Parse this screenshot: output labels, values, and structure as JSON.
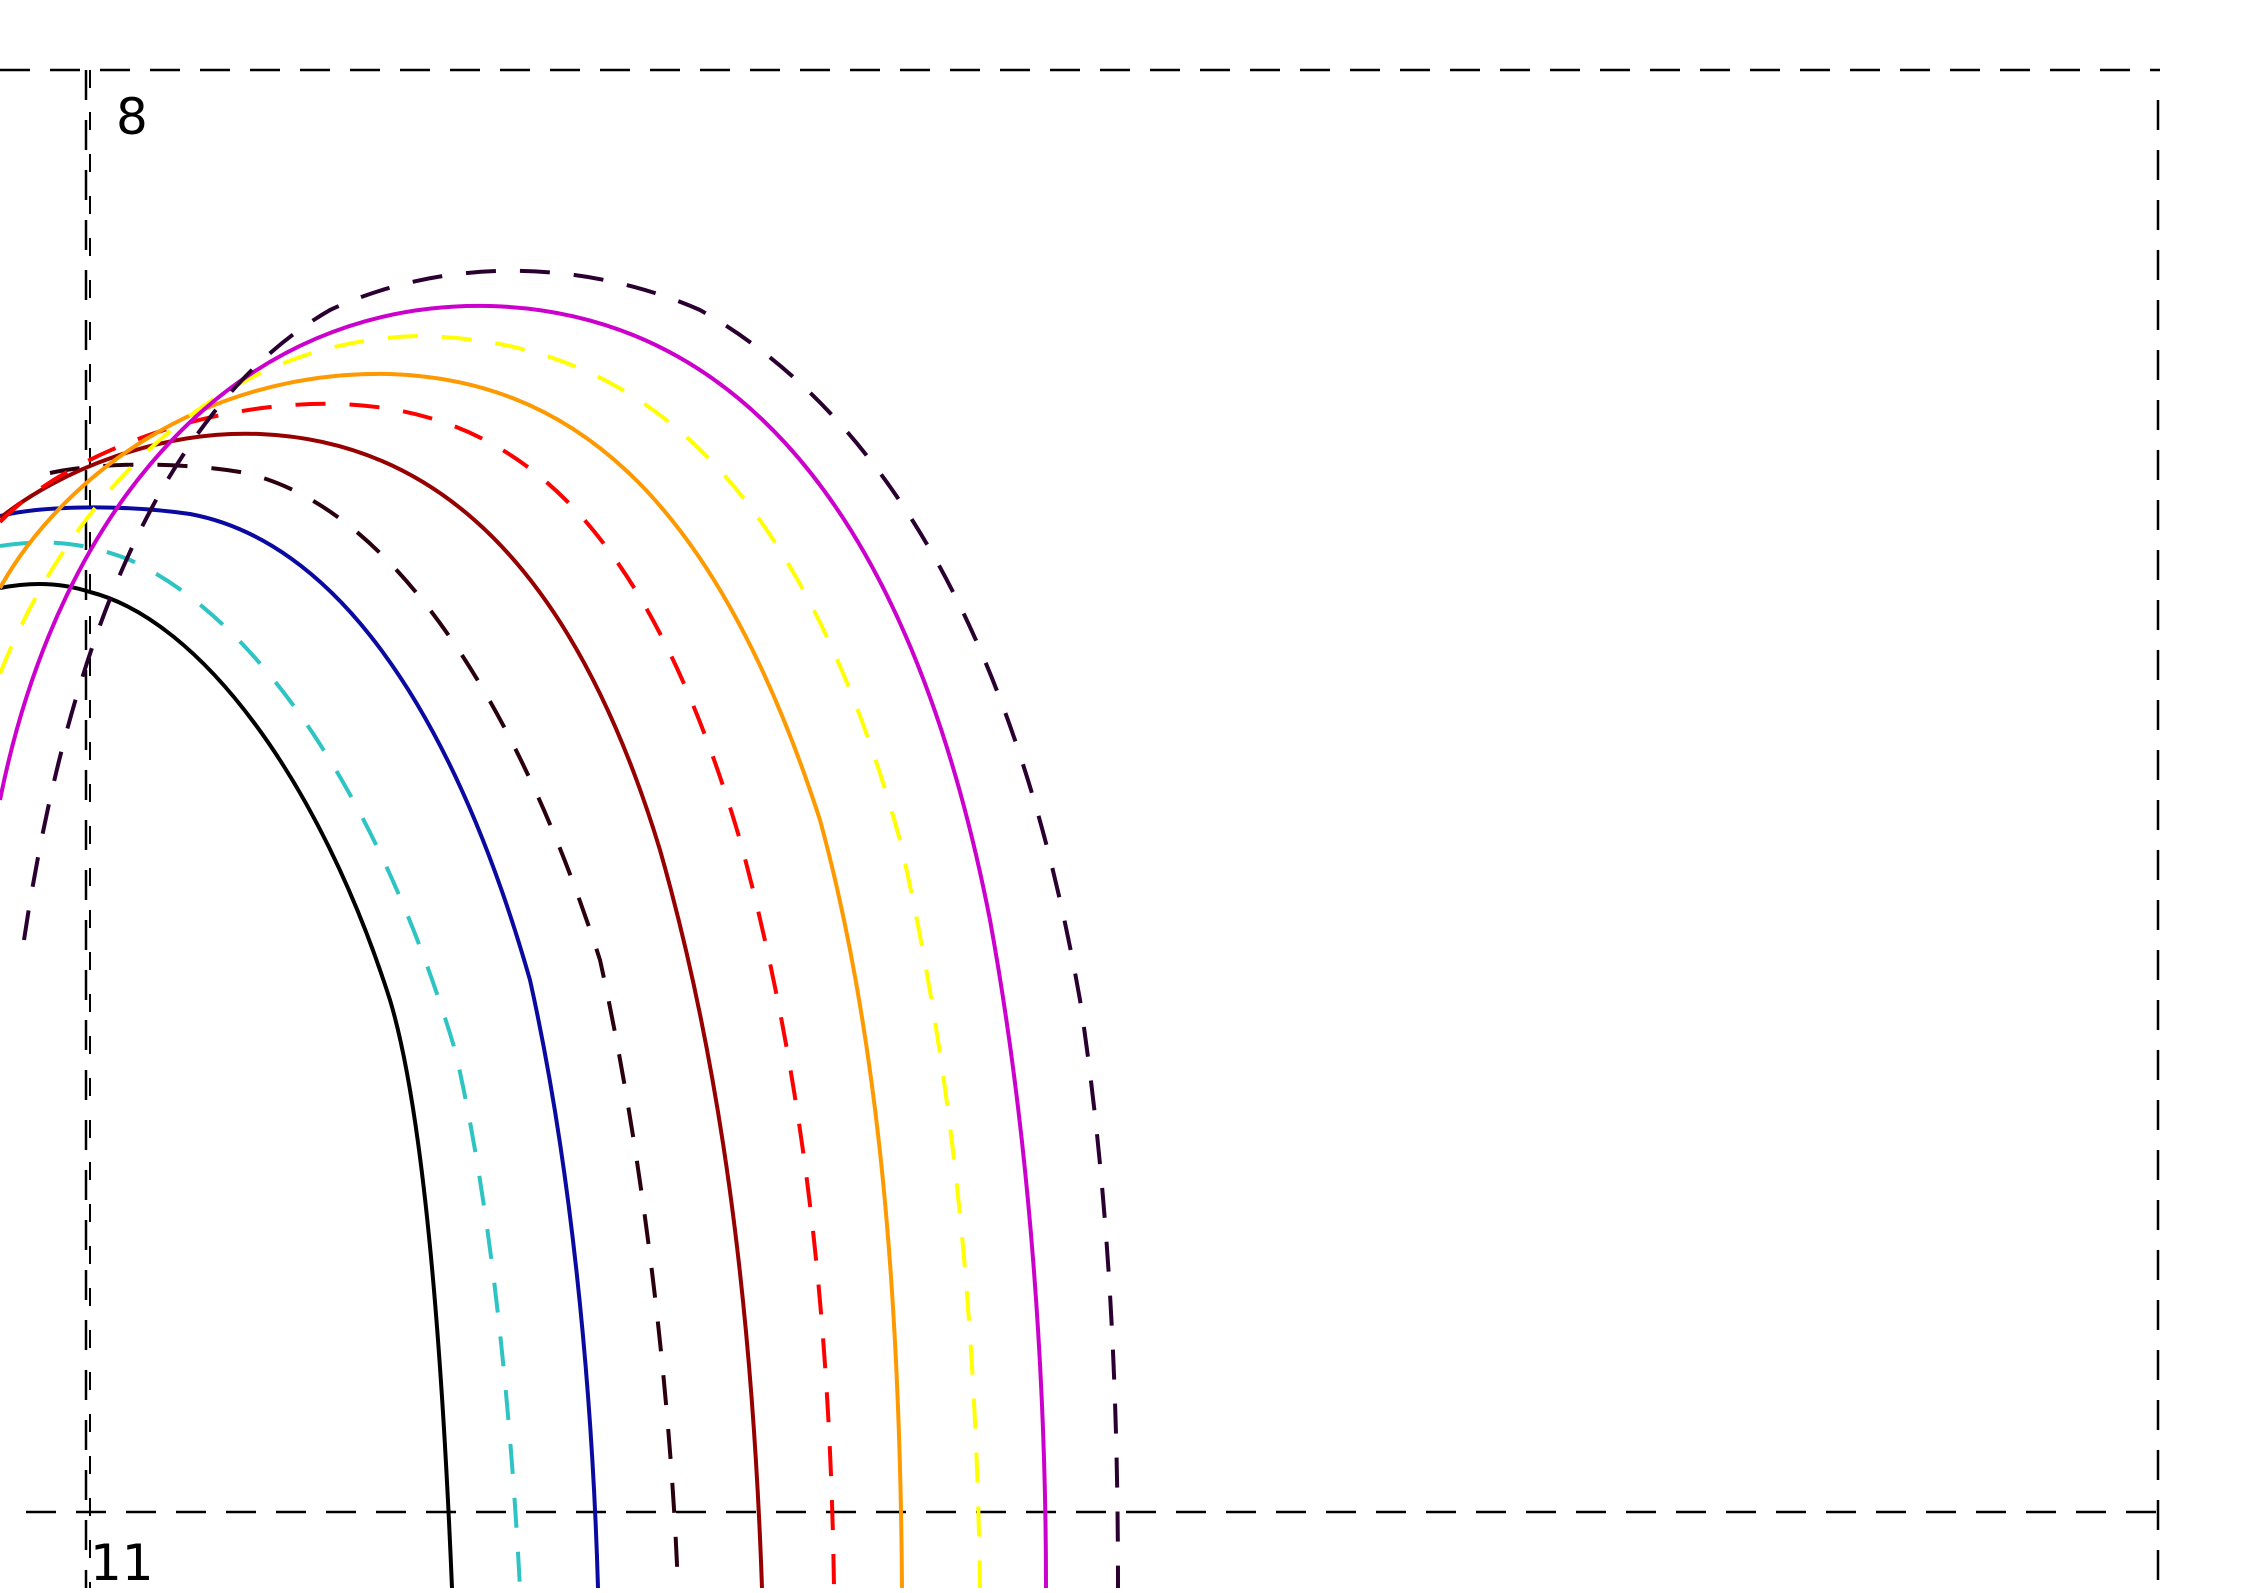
{
  "panels": [
    {
      "label": "8"
    },
    {
      "label": "11"
    }
  ],
  "curves": [
    {
      "color": "#000000",
      "style": "solid"
    },
    {
      "color": "#2ec4c4",
      "style": "dashed"
    },
    {
      "color": "#0a0aa0",
      "style": "solid"
    },
    {
      "color": "#2a0010",
      "style": "dashed"
    },
    {
      "color": "#960000",
      "style": "solid"
    },
    {
      "color": "#ff0000",
      "style": "dashed"
    },
    {
      "color": "#ff9900",
      "style": "solid"
    },
    {
      "color": "#ffff00",
      "style": "dashed"
    },
    {
      "color": "#cc00cc",
      "style": "solid"
    },
    {
      "color": "#2a0030",
      "style": "dashed"
    }
  ],
  "colors": {
    "frame": "#000000",
    "background": "#ffffff"
  }
}
